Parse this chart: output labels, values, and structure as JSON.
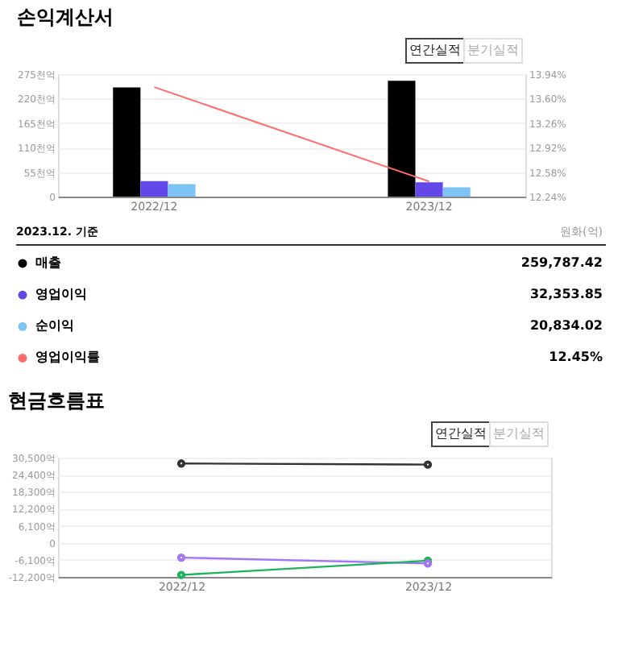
{
  "chart_data": [
    {
      "type": "bar",
      "title": "손익계산서",
      "categories": [
        "2022/12",
        "2023/12"
      ],
      "series": [
        {
          "name": "매출",
          "color": "#000000",
          "values": [
            245,
            260
          ]
        },
        {
          "name": "영업이익",
          "color": "#6347e8",
          "values": [
            35,
            32
          ]
        },
        {
          "name": "순이익",
          "color": "#7dc3f5",
          "values": [
            28,
            21
          ]
        },
        {
          "name": "영업이익률",
          "color": "#ff6b6b",
          "type": "line",
          "axis": "y2",
          "values": [
            13.76,
            12.45
          ]
        }
      ],
      "ylim": [
        0,
        275
      ],
      "yticks": [
        0,
        {
          "value": 55,
          "label": "55천억"
        },
        {
          "value": 110,
          "label": "110천억"
        },
        {
          "value": 165,
          "label": "165천억"
        },
        {
          "value": 220,
          "label": "220천억"
        },
        {
          "value": 275,
          "label": "275천억"
        }
      ],
      "y2lim": [
        12.24,
        13.94
      ],
      "y2ticks": [
        {
          "value": 12.24,
          "label": "12.24%"
        },
        {
          "value": 12.58,
          "label": "12.58%"
        },
        {
          "value": 12.92,
          "label": "12.92%"
        },
        {
          "value": 13.26,
          "label": "13.26%"
        },
        {
          "value": 13.6,
          "label": "13.60%"
        },
        {
          "value": 13.94,
          "label": "13.94%"
        }
      ],
      "grid": "y",
      "legend": "bottom",
      "annotations": [
        "연간실적",
        "분기실적",
        "2023.12. 기준",
        "원화(억)",
        "259,787.42",
        "32,353.85",
        "20,834.02",
        "12.45%"
      ]
    },
    {
      "type": "line",
      "title": "현금흐름표",
      "categories": [
        "2022/12",
        "2023/12"
      ],
      "series": [
        {
          "color": "#333333",
          "values": [
            28400,
            28000
          ]
        },
        {
          "color": "#a374f5",
          "values": [
            -5300,
            -7400
          ]
        },
        {
          "color": "#1db35a",
          "values": [
            -11500,
            -6400
          ]
        }
      ],
      "ylim": [
        -12200,
        30500
      ],
      "yticks": [
        {
          "value": -12200,
          "label": "-12,200억"
        },
        {
          "value": -6100,
          "label": "-6,100억"
        },
        0,
        {
          "value": 6100,
          "label": "6,100억"
        },
        {
          "value": 12200,
          "label": "12,200억"
        },
        {
          "value": 18300,
          "label": "18,300억"
        },
        {
          "value": 24400,
          "label": "24,400억"
        },
        {
          "value": 30500,
          "label": "30,500억"
        }
      ],
      "grid": "y",
      "marker": "circle",
      "annotations": [
        "연간실적",
        "분기실적"
      ]
    }
  ]
}
